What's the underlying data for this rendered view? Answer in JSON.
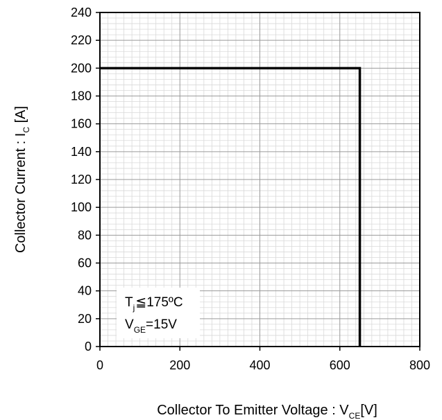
{
  "chart_data": {
    "type": "line",
    "title": "",
    "xlabel": {
      "text": "Collector To Emitter Voltage : V",
      "sub": "CE",
      "unit": "[V]"
    },
    "ylabel": {
      "text": "Collector Current : I",
      "sub": "C",
      "unit": " [A]"
    },
    "xlim": [
      0,
      800
    ],
    "ylim": [
      0,
      240
    ],
    "xticks": [
      0,
      200,
      400,
      600,
      800
    ],
    "yticks": [
      0,
      20,
      40,
      60,
      80,
      100,
      120,
      140,
      160,
      180,
      200,
      220,
      240
    ],
    "grid": true,
    "series": [
      {
        "x": [
          0,
          650,
          650
        ],
        "y": [
          200,
          200,
          0
        ]
      }
    ],
    "annotations": [
      {
        "main": "T",
        "sub": "j",
        "rest": "≦175ºC"
      },
      {
        "main": "V",
        "sub": "GE",
        "rest": "=15V"
      }
    ]
  }
}
